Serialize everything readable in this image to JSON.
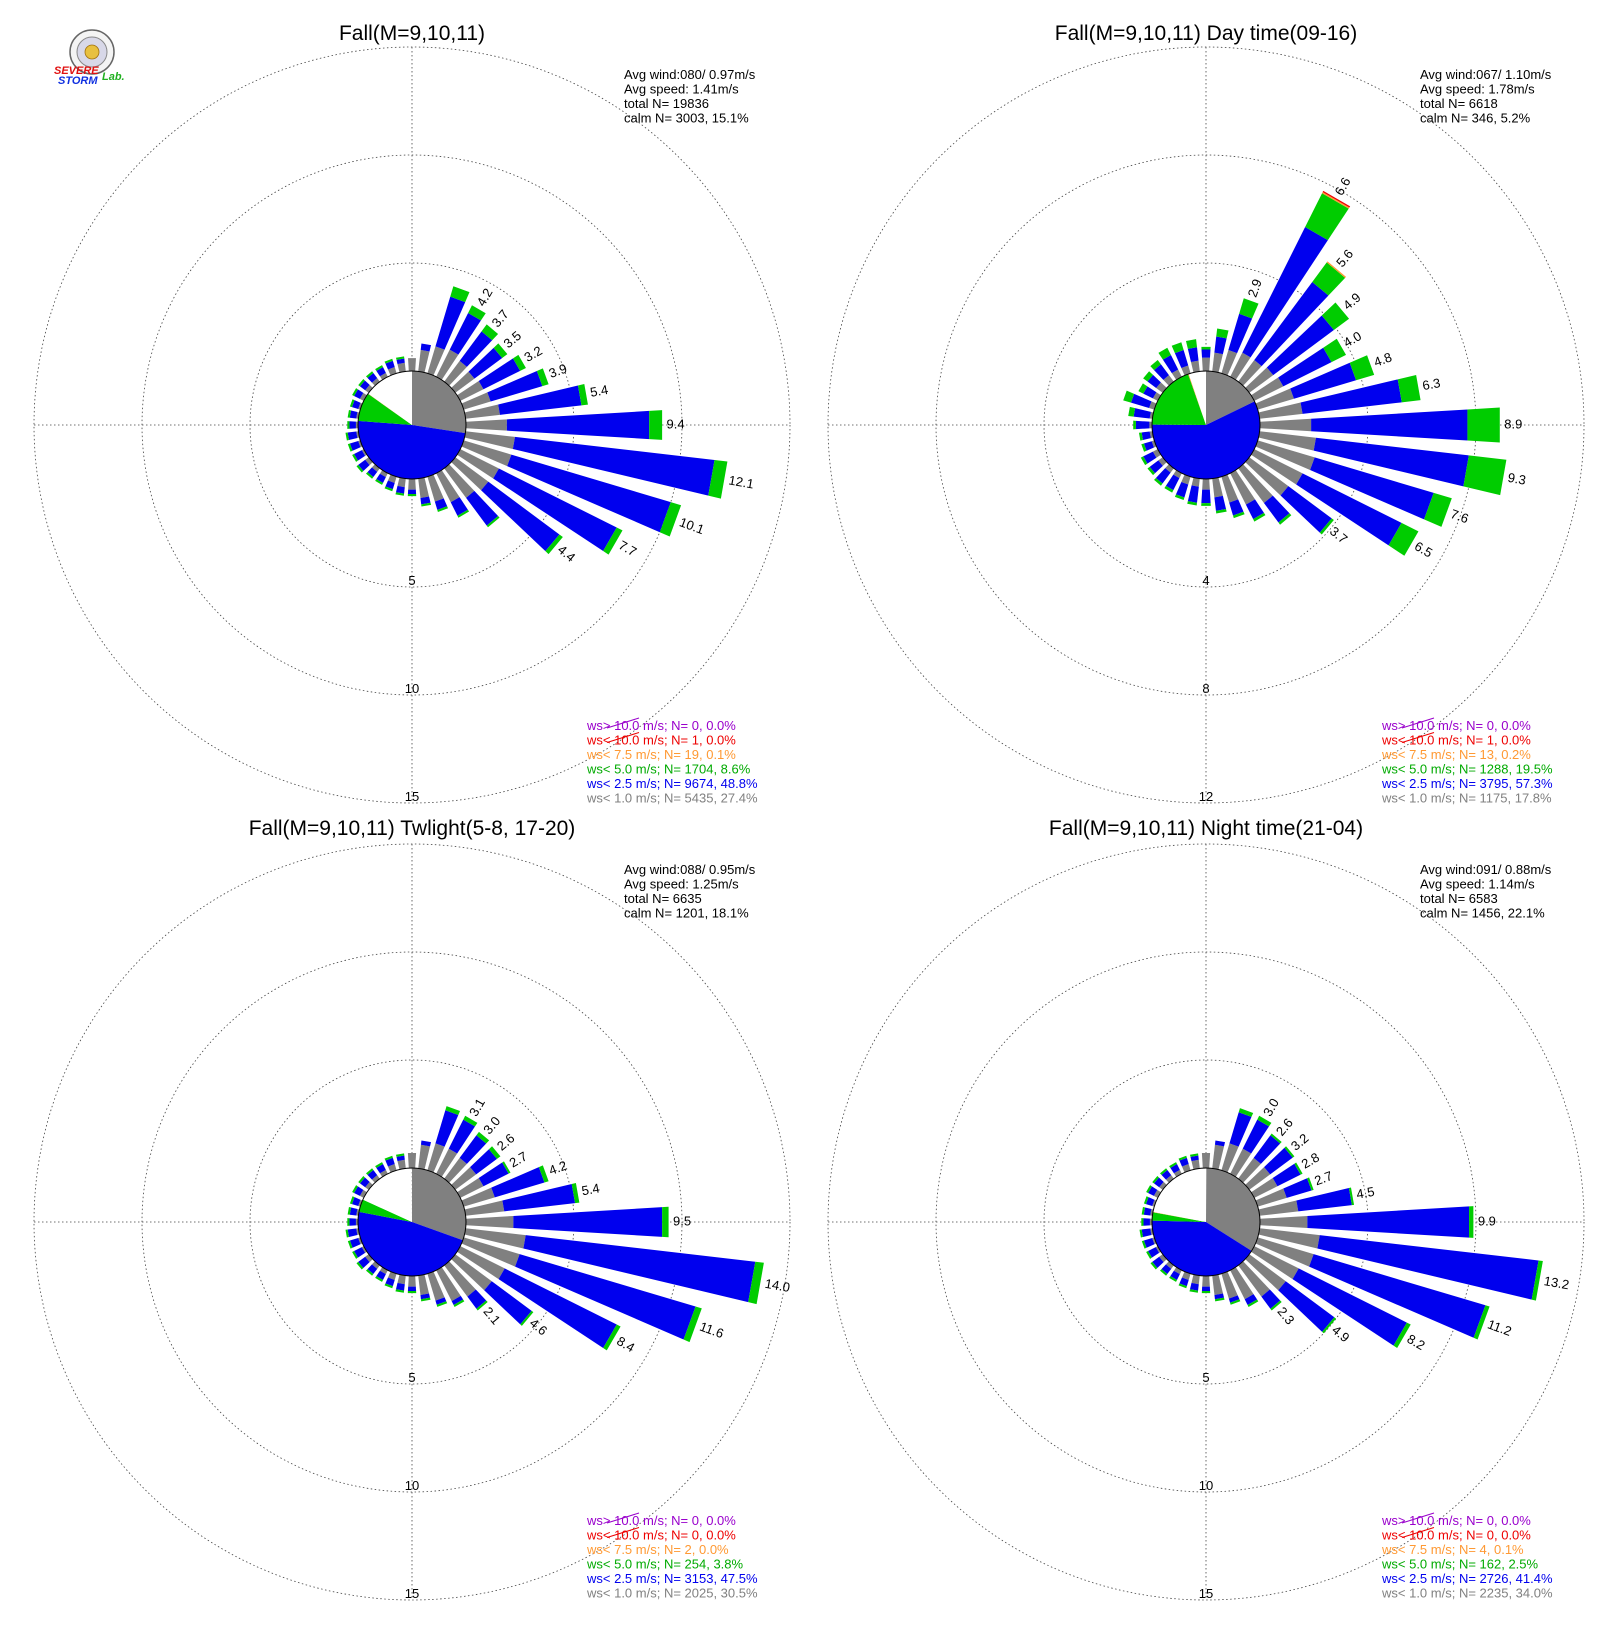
{
  "logo": {
    "line1": "SEVERE",
    "line2": "STORM",
    "suffix": "Lab.",
    "colors": {
      "s1": "#e01010",
      "s2": "#1030e0",
      "lab": "#20b020"
    }
  },
  "colors": {
    "ws_lt_1": "#808080",
    "ws_lt_2_5": "#0000ee",
    "ws_lt_5": "#00cc00",
    "ws_lt_7_5": "#ff9933",
    "ws_lt_10": "#ee0000",
    "ws_gt_10": "#9900cc"
  },
  "chart_data": [
    {
      "type": "wind_rose",
      "title": "Fall(M=9,10,11)",
      "stats": {
        "avg_wind": "Avg wind:080/ 0.97m/s",
        "avg_speed": "Avg speed: 1.41m/s",
        "total": "total N=      19836",
        "calm": "calm N=   3003,  15.1%"
      },
      "radial_max": 15,
      "ring_values": [
        5,
        10,
        15
      ],
      "ring_labels": [
        "5",
        "10",
        "15"
      ],
      "pie_fractions": [
        0.274,
        0.488,
        0.086,
        0.001,
        0.0,
        0.151
      ],
      "directions_deg": [
        0,
        10,
        20,
        30,
        40,
        50,
        60,
        70,
        80,
        90,
        100,
        110,
        120,
        130,
        140,
        150,
        160,
        170,
        180,
        190,
        200,
        210,
        220,
        230,
        240,
        250,
        260,
        270,
        280,
        290,
        300,
        310,
        320,
        330,
        340,
        350
      ],
      "gray": [
        0.6,
        1.0,
        1.3,
        1.4,
        1.2,
        1.1,
        1.2,
        1.3,
        1.6,
        1.9,
        2.3,
        2.3,
        2.0,
        1.9,
        1.7,
        1.5,
        1.2,
        0.9,
        0.5,
        0.4,
        0.3,
        0.2,
        0.2,
        0.2,
        0.1,
        0.1,
        0.1,
        0.1,
        0.1,
        0.1,
        0.2,
        0.2,
        0.2,
        0.2,
        0.3,
        0.4
      ],
      "blue": [
        0.0,
        0.3,
        2.4,
        1.9,
        1.7,
        1.6,
        1.9,
        2.5,
        3.8,
        6.6,
        9.3,
        7.7,
        6.1,
        4.1,
        1.6,
        0.7,
        0.4,
        0.3,
        0.2,
        0.3,
        0.3,
        0.3,
        0.3,
        0.4,
        0.4,
        0.4,
        0.4,
        0.3,
        0.3,
        0.3,
        0.3,
        0.3,
        0.3,
        0.3,
        0.3,
        0.2
      ],
      "green": [
        0.0,
        0.0,
        0.5,
        0.4,
        0.4,
        0.3,
        0.3,
        0.3,
        0.3,
        0.6,
        0.6,
        0.5,
        0.3,
        0.2,
        0.1,
        0.1,
        0.1,
        0.1,
        0.1,
        0.1,
        0.1,
        0.1,
        0.1,
        0.1,
        0.1,
        0.1,
        0.1,
        0.1,
        0.1,
        0.1,
        0.1,
        0.1,
        0.1,
        0.1,
        0.1,
        0.1
      ],
      "orange": [
        0,
        0,
        0,
        0,
        0,
        0,
        0,
        0,
        0,
        0,
        0,
        0,
        0,
        0,
        0,
        0,
        0,
        0,
        0,
        0,
        0,
        0,
        0,
        0,
        0,
        0,
        0,
        0,
        0,
        0,
        0,
        0,
        0,
        0,
        0,
        0
      ],
      "red": [
        0,
        0,
        0,
        0,
        0,
        0,
        0,
        0,
        0,
        0,
        0,
        0,
        0,
        0,
        0,
        0,
        0,
        0,
        0,
        0,
        0,
        0,
        0,
        0,
        0,
        0,
        0,
        0,
        0,
        0,
        0,
        0,
        0,
        0,
        0,
        0
      ],
      "bar_labels": [
        {
          "dir": 30,
          "text": "4.2"
        },
        {
          "dir": 40,
          "text": "3.7"
        },
        {
          "dir": 50,
          "text": "3.5"
        },
        {
          "dir": 60,
          "text": "3.2"
        },
        {
          "dir": 70,
          "text": "3.9"
        },
        {
          "dir": 80,
          "text": "5.4"
        },
        {
          "dir": 90,
          "text": "9.4"
        },
        {
          "dir": 100,
          "text": "12.1"
        },
        {
          "dir": 110,
          "text": "10.1"
        },
        {
          "dir": 120,
          "text": "7.7"
        },
        {
          "dir": 130,
          "text": "4.4"
        }
      ],
      "legend": [
        {
          "text": "ws> 10.0 m/s; N=     0,  0.0%",
          "color": "#9900cc"
        },
        {
          "text": "ws< 10.0 m/s; N=     1,  0.0%",
          "color": "#ee0000"
        },
        {
          "text": "ws<  7.5 m/s; N=    19,  0.1%",
          "color": "#ff9933"
        },
        {
          "text": "ws<  5.0 m/s; N=  1704,  8.6%",
          "color": "#00aa00"
        },
        {
          "text": "ws<  2.5 m/s; N=  9674, 48.8%",
          "color": "#0000ee"
        },
        {
          "text": "ws<  1.0 m/s; N=  5435, 27.4%",
          "color": "#808080"
        }
      ]
    },
    {
      "type": "wind_rose",
      "title": "Fall(M=9,10,11) Day time(09-16)",
      "stats": {
        "avg_wind": "Avg wind:067/ 1.10m/s",
        "avg_speed": "Avg speed: 1.78m/s",
        "total": "total N=       6618",
        "calm": "calm N=    346,   5.2%"
      },
      "radial_max": 12,
      "ring_values": [
        4,
        8,
        12
      ],
      "ring_labels": [
        "4",
        "8",
        "12"
      ],
      "pie_fractions": [
        0.178,
        0.573,
        0.195,
        0.002,
        0.0,
        0.052
      ],
      "directions_deg": [
        0,
        10,
        20,
        30,
        40,
        50,
        60,
        70,
        80,
        90,
        100,
        110,
        120,
        130,
        140,
        150,
        160,
        170,
        180,
        190,
        200,
        210,
        220,
        230,
        240,
        250,
        260,
        270,
        280,
        290,
        300,
        310,
        320,
        330,
        340,
        350
      ],
      "gray": [
        0.5,
        0.7,
        0.9,
        1.0,
        1.0,
        1.1,
        1.2,
        1.4,
        1.6,
        1.9,
        2.1,
        2.2,
        2.0,
        1.8,
        1.6,
        1.3,
        1.0,
        0.7,
        0.4,
        0.3,
        0.3,
        0.2,
        0.2,
        0.2,
        0.2,
        0.1,
        0.1,
        0.1,
        0.1,
        0.2,
        0.2,
        0.3,
        0.3,
        0.3,
        0.3,
        0.4
      ],
      "blue": [
        0.3,
        0.6,
        1.4,
        5.2,
        3.6,
        2.8,
        2.0,
        2.4,
        3.7,
        5.8,
        5.7,
        4.6,
        4.1,
        2.0,
        0.9,
        0.6,
        0.5,
        0.5,
        0.5,
        0.6,
        0.5,
        0.5,
        0.5,
        0.4,
        0.4,
        0.3,
        0.3,
        0.5,
        0.6,
        0.7,
        0.4,
        0.4,
        0.5,
        0.6,
        0.6,
        0.5
      ],
      "green": [
        0.1,
        0.3,
        0.6,
        1.4,
        0.9,
        0.7,
        0.6,
        0.7,
        0.7,
        1.2,
        1.4,
        0.7,
        0.7,
        0.1,
        0.1,
        0.1,
        0.1,
        0.1,
        0.1,
        0.1,
        0.1,
        0.1,
        0.1,
        0.1,
        0.1,
        0.1,
        0.1,
        0.1,
        0.2,
        0.3,
        0.2,
        0.2,
        0.2,
        0.3,
        0.3,
        0.3
      ],
      "orange": [
        0,
        0,
        0,
        0.05,
        0.05,
        0,
        0,
        0,
        0,
        0,
        0,
        0,
        0,
        0,
        0,
        0,
        0,
        0,
        0,
        0,
        0,
        0,
        0,
        0,
        0,
        0,
        0,
        0,
        0,
        0,
        0,
        0,
        0,
        0,
        0,
        0
      ],
      "red": [
        0,
        0,
        0,
        0.05,
        0,
        0,
        0,
        0,
        0,
        0,
        0,
        0,
        0,
        0,
        0,
        0,
        0,
        0,
        0,
        0,
        0,
        0,
        0,
        0,
        0,
        0,
        0,
        0,
        0,
        0,
        0,
        0,
        0,
        0,
        0,
        0
      ],
      "bar_labels": [
        {
          "dir": 20,
          "text": "2.9"
        },
        {
          "dir": 30,
          "text": "6.6"
        },
        {
          "dir": 40,
          "text": "5.6"
        },
        {
          "dir": 50,
          "text": "4.9"
        },
        {
          "dir": 60,
          "text": "4.0"
        },
        {
          "dir": 70,
          "text": "4.8"
        },
        {
          "dir": 80,
          "text": "6.3"
        },
        {
          "dir": 90,
          "text": "8.9"
        },
        {
          "dir": 100,
          "text": "9.3"
        },
        {
          "dir": 110,
          "text": "7.6"
        },
        {
          "dir": 120,
          "text": "6.5"
        },
        {
          "dir": 130,
          "text": "3.7"
        }
      ],
      "legend": [
        {
          "text": "ws> 10.0 m/s; N=     0,  0.0%",
          "color": "#9900cc"
        },
        {
          "text": "ws< 10.0 m/s; N=     1,  0.0%",
          "color": "#ee0000"
        },
        {
          "text": "ws<  7.5 m/s; N=    13,  0.2%",
          "color": "#ff9933"
        },
        {
          "text": "ws<  5.0 m/s; N=  1288, 19.5%",
          "color": "#00aa00"
        },
        {
          "text": "ws<  2.5 m/s; N=  3795, 57.3%",
          "color": "#0000ee"
        },
        {
          "text": "ws<  1.0 m/s; N=  1175, 17.8%",
          "color": "#808080"
        }
      ]
    },
    {
      "type": "wind_rose",
      "title": "Fall(M=9,10,11) Twlight(5-8, 17-20)",
      "stats": {
        "avg_wind": "Avg wind:088/ 0.95m/s",
        "avg_speed": "Avg speed: 1.25m/s",
        "total": "total N=       6635",
        "calm": "calm N=   1201,  18.1%"
      },
      "radial_max": 15,
      "ring_values": [
        5,
        10,
        15
      ],
      "ring_labels": [
        "5",
        "10",
        "15"
      ],
      "pie_fractions": [
        0.305,
        0.475,
        0.038,
        0.0,
        0.0,
        0.181
      ],
      "directions_deg": [
        0,
        10,
        20,
        30,
        40,
        50,
        60,
        70,
        80,
        90,
        100,
        110,
        120,
        130,
        140,
        150,
        160,
        170,
        180,
        190,
        200,
        210,
        220,
        230,
        240,
        250,
        260,
        270,
        280,
        290,
        300,
        310,
        320,
        330,
        340,
        350
      ],
      "gray": [
        0.7,
        1.1,
        1.3,
        1.3,
        1.2,
        1.2,
        1.2,
        1.5,
        1.8,
        2.2,
        2.8,
        2.7,
        2.3,
        2.1,
        1.8,
        1.6,
        1.3,
        0.9,
        0.5,
        0.4,
        0.3,
        0.2,
        0.2,
        0.2,
        0.1,
        0.1,
        0.1,
        0.1,
        0.1,
        0.1,
        0.2,
        0.2,
        0.2,
        0.2,
        0.3,
        0.4
      ],
      "blue": [
        0.0,
        0.2,
        1.6,
        1.5,
        1.3,
        1.2,
        1.3,
        2.4,
        3.3,
        6.9,
        10.7,
        8.5,
        5.8,
        2.3,
        0.7,
        0.2,
        0.2,
        0.2,
        0.2,
        0.3,
        0.3,
        0.3,
        0.3,
        0.4,
        0.4,
        0.4,
        0.4,
        0.3,
        0.3,
        0.3,
        0.3,
        0.3,
        0.3,
        0.3,
        0.3,
        0.2
      ],
      "green": [
        0.0,
        0.0,
        0.2,
        0.2,
        0.2,
        0.2,
        0.1,
        0.2,
        0.2,
        0.3,
        0.4,
        0.3,
        0.2,
        0.1,
        0.1,
        0.1,
        0.1,
        0.1,
        0.1,
        0.1,
        0.1,
        0.1,
        0.1,
        0.1,
        0.1,
        0.1,
        0.1,
        0.1,
        0.1,
        0.1,
        0.1,
        0.1,
        0.1,
        0.1,
        0.1,
        0.1
      ],
      "orange": [
        0,
        0,
        0,
        0,
        0,
        0,
        0,
        0,
        0,
        0,
        0,
        0,
        0,
        0,
        0,
        0,
        0,
        0,
        0,
        0,
        0,
        0,
        0,
        0,
        0,
        0,
        0,
        0,
        0,
        0,
        0,
        0,
        0,
        0,
        0,
        0
      ],
      "red": [
        0,
        0,
        0,
        0,
        0,
        0,
        0,
        0,
        0,
        0,
        0,
        0,
        0,
        0,
        0,
        0,
        0,
        0,
        0,
        0,
        0,
        0,
        0,
        0,
        0,
        0,
        0,
        0,
        0,
        0,
        0,
        0,
        0,
        0,
        0,
        0
      ],
      "bar_labels": [
        {
          "dir": 30,
          "text": "3.1"
        },
        {
          "dir": 40,
          "text": "3.0"
        },
        {
          "dir": 50,
          "text": "2.6"
        },
        {
          "dir": 60,
          "text": "2.7"
        },
        {
          "dir": 70,
          "text": "4.2"
        },
        {
          "dir": 80,
          "text": "5.4"
        },
        {
          "dir": 90,
          "text": "9.5"
        },
        {
          "dir": 100,
          "text": "14.0"
        },
        {
          "dir": 110,
          "text": "11.6"
        },
        {
          "dir": 120,
          "text": "8.4"
        },
        {
          "dir": 130,
          "text": "4.6"
        },
        {
          "dir": 140,
          "text": "2.1"
        }
      ],
      "legend": [
        {
          "text": "ws> 10.0 m/s; N=     0,  0.0%",
          "color": "#9900cc"
        },
        {
          "text": "ws< 10.0 m/s; N=     0,  0.0%",
          "color": "#ee0000"
        },
        {
          "text": "ws<  7.5 m/s; N=     2,  0.0%",
          "color": "#ff9933"
        },
        {
          "text": "ws<  5.0 m/s; N=   254,  3.8%",
          "color": "#00aa00"
        },
        {
          "text": "ws<  2.5 m/s; N=  3153, 47.5%",
          "color": "#0000ee"
        },
        {
          "text": "ws<  1.0 m/s; N=  2025, 30.5%",
          "color": "#808080"
        }
      ]
    },
    {
      "type": "wind_rose",
      "title": "Fall(M=9,10,11) Night time(21-04)",
      "stats": {
        "avg_wind": "Avg wind:091/ 0.88m/s",
        "avg_speed": "Avg speed: 1.14m/s",
        "total": "total N=       6583",
        "calm": "calm N=   1456,  22.1%"
      },
      "radial_max": 15,
      "ring_values": [
        5,
        10,
        15
      ],
      "ring_labels": [
        "5",
        "10",
        "15"
      ],
      "pie_fractions": [
        0.34,
        0.414,
        0.025,
        0.001,
        0.0,
        0.221
      ],
      "directions_deg": [
        0,
        10,
        20,
        30,
        40,
        50,
        60,
        70,
        80,
        90,
        100,
        110,
        120,
        130,
        140,
        150,
        160,
        170,
        180,
        190,
        200,
        210,
        220,
        230,
        240,
        250,
        260,
        270,
        280,
        290,
        300,
        310,
        320,
        330,
        340,
        350
      ],
      "gray": [
        0.7,
        1.1,
        1.3,
        1.3,
        1.2,
        1.2,
        1.2,
        1.4,
        1.8,
        2.2,
        2.8,
        2.7,
        2.3,
        2.1,
        1.8,
        1.5,
        1.2,
        0.9,
        0.5,
        0.4,
        0.3,
        0.2,
        0.2,
        0.2,
        0.1,
        0.1,
        0.1,
        0.1,
        0.1,
        0.1,
        0.2,
        0.2,
        0.2,
        0.2,
        0.3,
        0.4
      ],
      "blue": [
        0.0,
        0.2,
        1.5,
        1.5,
        1.3,
        1.3,
        1.2,
        1.2,
        2.5,
        7.5,
        10.2,
        8.3,
        5.6,
        2.8,
        0.7,
        0.3,
        0.2,
        0.2,
        0.2,
        0.3,
        0.3,
        0.3,
        0.3,
        0.4,
        0.4,
        0.4,
        0.4,
        0.3,
        0.3,
        0.3,
        0.3,
        0.3,
        0.3,
        0.3,
        0.3,
        0.2
      ],
      "green": [
        0.0,
        0.0,
        0.2,
        0.2,
        0.1,
        0.1,
        0.1,
        0.1,
        0.1,
        0.2,
        0.2,
        0.2,
        0.2,
        0.1,
        0.1,
        0.1,
        0.1,
        0.1,
        0.1,
        0.1,
        0.1,
        0.1,
        0.1,
        0.1,
        0.1,
        0.1,
        0.1,
        0.1,
        0.1,
        0.1,
        0.1,
        0.1,
        0.1,
        0.1,
        0.1,
        0.1
      ],
      "orange": [
        0,
        0,
        0,
        0,
        0,
        0,
        0,
        0,
        0,
        0,
        0,
        0,
        0,
        0,
        0,
        0,
        0,
        0,
        0,
        0,
        0,
        0,
        0,
        0,
        0,
        0,
        0,
        0,
        0,
        0,
        0,
        0,
        0,
        0,
        0,
        0
      ],
      "red": [
        0,
        0,
        0,
        0,
        0,
        0,
        0,
        0,
        0,
        0,
        0,
        0,
        0,
        0,
        0,
        0,
        0,
        0,
        0,
        0,
        0,
        0,
        0,
        0,
        0,
        0,
        0,
        0,
        0,
        0,
        0,
        0,
        0,
        0,
        0,
        0
      ],
      "bar_labels": [
        {
          "dir": 30,
          "text": "3.0"
        },
        {
          "dir": 40,
          "text": "2.6"
        },
        {
          "dir": 50,
          "text": "3.2"
        },
        {
          "dir": 60,
          "text": "2.8"
        },
        {
          "dir": 70,
          "text": "2.7"
        },
        {
          "dir": 80,
          "text": "4.5"
        },
        {
          "dir": 90,
          "text": "9.9"
        },
        {
          "dir": 100,
          "text": "13.2"
        },
        {
          "dir": 110,
          "text": "11.2"
        },
        {
          "dir": 120,
          "text": "8.2"
        },
        {
          "dir": 130,
          "text": "4.9"
        },
        {
          "dir": 140,
          "text": "2.3"
        }
      ],
      "legend": [
        {
          "text": "ws> 10.0 m/s; N=     0,  0.0%",
          "color": "#9900cc"
        },
        {
          "text": "ws< 10.0 m/s; N=     0,  0.0%",
          "color": "#ee0000"
        },
        {
          "text": "ws<  7.5 m/s; N=     4,  0.1%",
          "color": "#ff9933"
        },
        {
          "text": "ws<  5.0 m/s; N=   162,  2.5%",
          "color": "#00aa00"
        },
        {
          "text": "ws<  2.5 m/s; N=  2726, 41.4%",
          "color": "#0000ee"
        },
        {
          "text": "ws<  1.0 m/s; N=  2235, 34.0%",
          "color": "#808080"
        }
      ]
    }
  ]
}
